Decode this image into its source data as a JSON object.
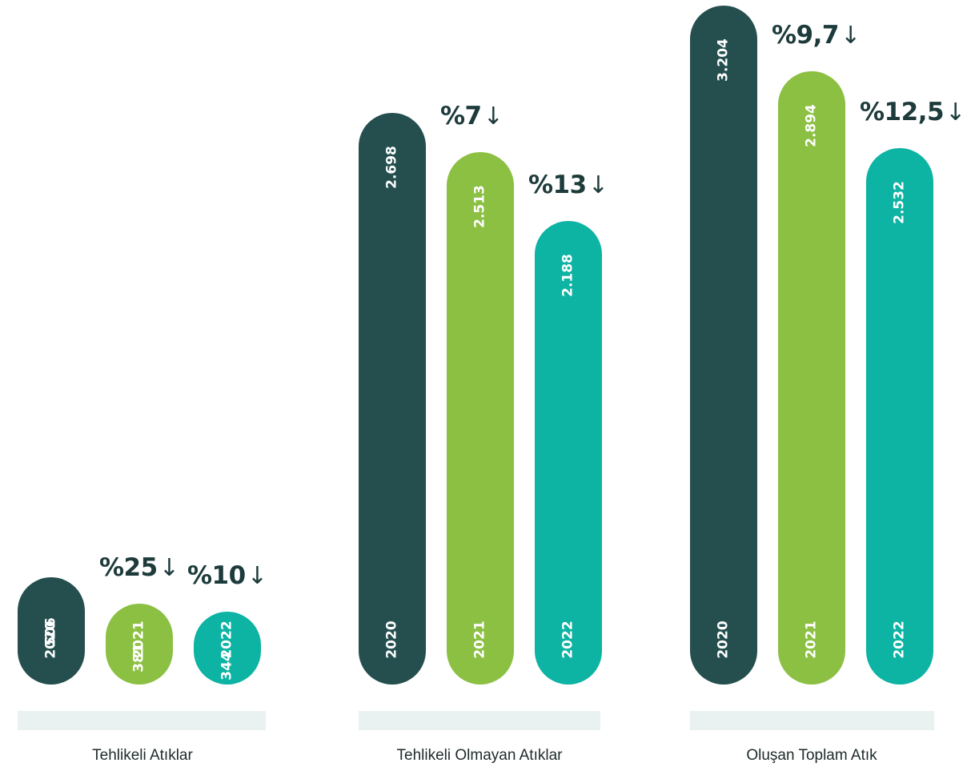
{
  "colors": {
    "y2020": "#244f4e",
    "y2021": "#8cc043",
    "y2022": "#0db3a3",
    "base_strip": "#e9f2f1",
    "percent_text": "#1e3b3b",
    "label_text": "#1f2a2a"
  },
  "chart_data": [
    {
      "type": "bar",
      "title": "",
      "category_label": "Tehlikeli Atıklar",
      "categories": [
        "2020",
        "2021",
        "2022"
      ],
      "values": [
        506,
        381,
        344
      ],
      "value_labels": [
        "506",
        "381",
        "344"
      ],
      "change_labels": [
        "",
        "%25↓",
        "%10↓"
      ],
      "ylim": [
        0,
        3300
      ]
    },
    {
      "type": "bar",
      "title": "",
      "category_label": "Tehlikeli Olmayan Atıklar",
      "categories": [
        "2020",
        "2021",
        "2022"
      ],
      "values": [
        2698,
        2513,
        2188
      ],
      "value_labels": [
        "2.698",
        "2.513",
        "2.188"
      ],
      "change_labels": [
        "",
        "%7↓",
        "%13↓"
      ],
      "ylim": [
        0,
        3300
      ]
    },
    {
      "type": "bar",
      "title": "",
      "category_label": "Oluşan Toplam Atık",
      "categories": [
        "2020",
        "2021",
        "2022"
      ],
      "values": [
        3204,
        2894,
        2532
      ],
      "value_labels": [
        "3.204",
        "2.894",
        "2.532"
      ],
      "change_labels": [
        "",
        "%9,7↓",
        "%12,5↓"
      ],
      "ylim": [
        0,
        3300
      ]
    }
  ]
}
